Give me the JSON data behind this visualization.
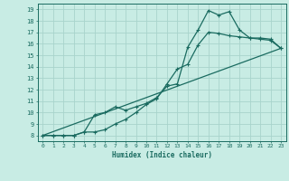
{
  "xlabel": "Humidex (Indice chaleur)",
  "bg_color": "#c8ece4",
  "grid_color": "#a8d4cc",
  "line_color": "#1a6b60",
  "xlim": [
    -0.5,
    23.5
  ],
  "ylim": [
    7.5,
    19.5
  ],
  "xticks": [
    0,
    1,
    2,
    3,
    4,
    5,
    6,
    7,
    8,
    9,
    10,
    11,
    12,
    13,
    14,
    15,
    16,
    17,
    18,
    19,
    20,
    21,
    22,
    23
  ],
  "yticks": [
    8,
    9,
    10,
    11,
    12,
    13,
    14,
    15,
    16,
    17,
    18,
    19
  ],
  "line1_x": [
    0,
    1,
    2,
    3,
    4,
    5,
    6,
    7,
    8,
    9,
    10,
    11,
    12,
    13,
    14,
    15,
    16,
    17,
    18,
    19,
    20,
    21,
    22,
    23
  ],
  "line1_y": [
    8,
    8,
    8,
    8,
    8.3,
    8.3,
    8.5,
    9.0,
    9.4,
    10.0,
    10.7,
    11.2,
    12.5,
    13.8,
    14.2,
    15.9,
    17.0,
    16.9,
    16.7,
    16.6,
    16.5,
    16.5,
    16.4,
    15.6
  ],
  "line2_x": [
    0,
    1,
    2,
    3,
    4,
    5,
    6,
    7,
    8,
    9,
    10,
    11,
    12,
    13,
    14,
    15,
    16,
    17,
    18,
    19,
    20,
    21,
    22,
    23
  ],
  "line2_y": [
    8,
    8,
    8,
    8,
    8.3,
    9.8,
    10.0,
    10.5,
    10.2,
    10.5,
    10.8,
    11.3,
    12.3,
    12.5,
    15.7,
    17.2,
    18.9,
    18.5,
    18.8,
    17.2,
    16.5,
    16.4,
    16.3,
    15.6
  ],
  "line3_x": [
    0,
    23
  ],
  "line3_y": [
    8,
    15.6
  ]
}
